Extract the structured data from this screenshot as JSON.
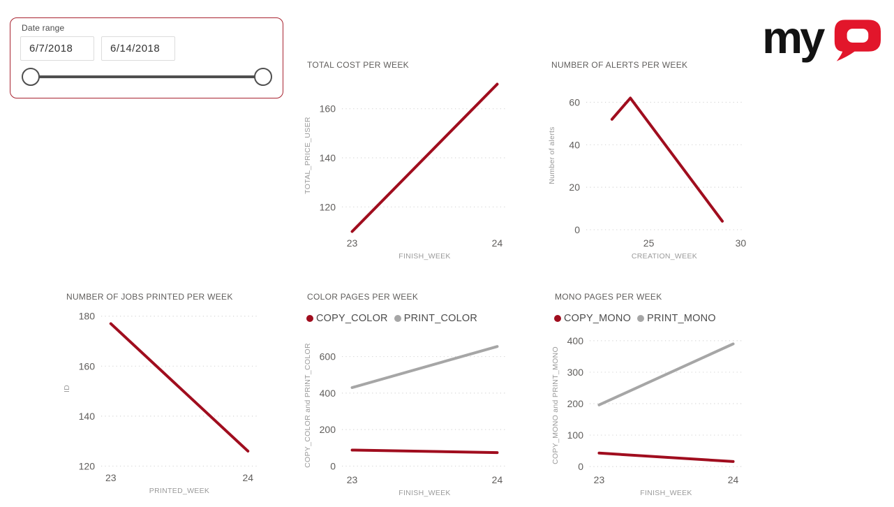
{
  "slicer": {
    "label": "Date range",
    "start_date": "6/7/2018",
    "end_date": "6/14/2018"
  },
  "logo": {
    "brand": "MyQ",
    "text_my": "my"
  },
  "colors": {
    "series_red": "#a00d1e",
    "series_gray": "#a6a6a6",
    "logo_red": "#e2162b",
    "logo_black": "#131313",
    "slicer_border": "#a82330",
    "gridline": "#d6d6d6",
    "tick_label": "#605e5c",
    "axis_title": "#9a9a9a"
  },
  "chart_data": [
    {
      "type": "line",
      "title": "TOTAL COST PER WEEK",
      "xlabel": "FINISH_WEEK",
      "ylabel": "TOTAL_PRICE_USER",
      "xlim": [
        22.93,
        24.07
      ],
      "ylim": [
        109,
        173
      ],
      "x_ticks": [
        23,
        24
      ],
      "y_ticks": [
        120,
        140,
        160
      ],
      "grid": true,
      "legend": false,
      "series": [
        {
          "name": "TOTAL_PRICE_USER",
          "color": "#a00d1e",
          "x": [
            23,
            24
          ],
          "values": [
            110,
            170
          ]
        }
      ]
    },
    {
      "type": "line",
      "title": "NUMBER OF ALERTS PER WEEK",
      "xlabel": "CREATION_WEEK",
      "ylabel": "Number of alerts",
      "xlim": [
        21.6,
        30.1
      ],
      "ylim": [
        -2,
        72
      ],
      "x_ticks": [
        25,
        30
      ],
      "y_ticks": [
        0,
        20,
        40,
        60
      ],
      "grid": true,
      "legend": false,
      "series": [
        {
          "name": "Number of alerts",
          "color": "#a00d1e",
          "x": [
            23,
            24,
            29
          ],
          "values": [
            52,
            62,
            4
          ]
        }
      ]
    },
    {
      "type": "line",
      "title": "NUMBER OF JOBS PRINTED PER WEEK",
      "xlabel": "PRINTED_WEEK",
      "ylabel": "ID",
      "xlim": [
        22.93,
        24.07
      ],
      "ylim": [
        119,
        183
      ],
      "x_ticks": [
        23,
        24
      ],
      "y_ticks": [
        120,
        140,
        160,
        180
      ],
      "grid": true,
      "legend": false,
      "series": [
        {
          "name": "ID",
          "color": "#a00d1e",
          "x": [
            23,
            24
          ],
          "values": [
            177,
            126
          ]
        }
      ]
    },
    {
      "type": "line",
      "title": "COLOR PAGES PER WEEK",
      "xlabel": "FINISH_WEEK",
      "ylabel": "COPY_COLOR and PRINT_COLOR",
      "xlim": [
        22.93,
        24.07
      ],
      "ylim": [
        -25,
        690
      ],
      "x_ticks": [
        23,
        24
      ],
      "y_ticks": [
        0,
        200,
        400,
        600
      ],
      "grid": true,
      "legend": true,
      "legend_position": "top",
      "series": [
        {
          "name": "COPY_COLOR",
          "color": "#a00d1e",
          "x": [
            23,
            24
          ],
          "values": [
            88,
            74
          ]
        },
        {
          "name": "PRINT_COLOR",
          "color": "#a6a6a6",
          "x": [
            23,
            24
          ],
          "values": [
            430,
            655
          ]
        }
      ]
    },
    {
      "type": "line",
      "title": "MONO PAGES PER WEEK",
      "xlabel": "FINISH_WEEK",
      "ylabel": "COPY_MONO and PRINT_MONO",
      "xlim": [
        22.93,
        24.07
      ],
      "ylim": [
        -13,
        402
      ],
      "x_ticks": [
        23,
        24
      ],
      "y_ticks": [
        0,
        100,
        200,
        300,
        400
      ],
      "grid": true,
      "legend": true,
      "legend_position": "top",
      "series": [
        {
          "name": "COPY_MONO",
          "color": "#a00d1e",
          "x": [
            23,
            24
          ],
          "values": [
            43,
            16
          ]
        },
        {
          "name": "PRINT_MONO",
          "color": "#a6a6a6",
          "x": [
            23,
            24
          ],
          "values": [
            196,
            390
          ]
        }
      ]
    }
  ]
}
